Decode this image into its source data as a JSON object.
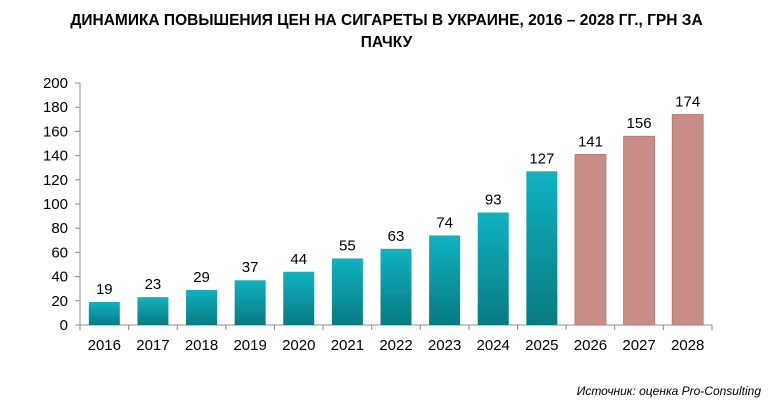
{
  "title_lines": [
    "ДИНАМИКА ПОВЫШЕНИЯ ЦЕН НА СИГАРЕТЫ В УКРАИНЕ, 2016 – 2028 ГГ., ГРН ЗА",
    "ПАЧКУ"
  ],
  "source": "Источник: оценка Pro-Consulting",
  "chart_data": {
    "type": "bar",
    "title": "ДИНАМИКА ПОВЫШЕНИЯ ЦЕН НА СИГАРЕТЫ В УКРАИНЕ, 2016 – 2028 ГГ., ГРН ЗА ПАЧКУ",
    "categories": [
      "2016",
      "2017",
      "2018",
      "2019",
      "2020",
      "2021",
      "2022",
      "2023",
      "2024",
      "2025",
      "2026",
      "2027",
      "2028"
    ],
    "values": [
      19,
      23,
      29,
      37,
      44,
      55,
      63,
      74,
      93,
      127,
      141,
      156,
      174
    ],
    "data_labels": [
      "19",
      "23",
      "29",
      "37",
      "44",
      "55",
      "63",
      "74",
      "93",
      "127",
      "141",
      "156",
      "174"
    ],
    "xlabel": "",
    "ylabel": "",
    "ylim": [
      0,
      200
    ],
    "yticks": [
      0,
      20,
      40,
      60,
      80,
      100,
      120,
      140,
      160,
      180,
      200
    ],
    "grid": false,
    "legend": "none",
    "colors": {
      "actual_top": "#10b3c1",
      "actual_bottom": "#087a82",
      "forecast": "#c98d88",
      "forecast_stroke": "#b57570",
      "axis": "#8c8c8c"
    },
    "forecast_from_index": 10
  }
}
